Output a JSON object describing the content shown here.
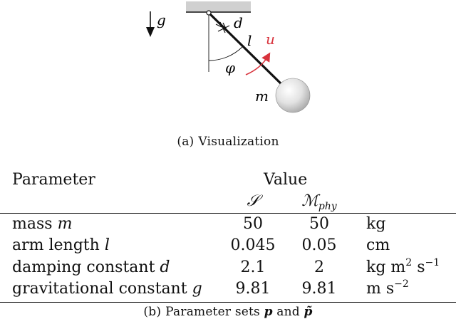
{
  "figure": {
    "labels": {
      "gravity": "g",
      "damping": "d",
      "length": "l",
      "input": "u",
      "angle": "φ",
      "mass": "m"
    },
    "colors": {
      "input_arrow": "#d8323c",
      "ceiling": "#d0d0d0",
      "rod": "#111111"
    }
  },
  "captions": {
    "a_label": "(a)",
    "a_text": "Visualization",
    "b_label": "(b)",
    "b_text_prefix": "Parameter sets",
    "b_p": "p",
    "b_and": "and",
    "b_ptilde": "p̃"
  },
  "table": {
    "header": {
      "parameter": "Parameter",
      "value": "Value",
      "set_s": "𝒮",
      "set_m": "ℳ",
      "set_m_sub": "phy"
    },
    "rows": [
      {
        "name": "mass",
        "symbol": "m",
        "s": "50",
        "m": "50",
        "unit": "kg",
        "unit_sup": ""
      },
      {
        "name": "arm length",
        "symbol": "l",
        "s": "0.045",
        "m": "0.05",
        "unit": "cm",
        "unit_sup": ""
      },
      {
        "name": "damping constant",
        "symbol": "d",
        "s": "2.1",
        "m": "2",
        "unit": "kg m2 s",
        "unit_sup": "−1"
      },
      {
        "name": "gravitational constant",
        "symbol": "g",
        "s": "9.81",
        "m": "9.81",
        "unit": "m s",
        "unit_sup": "−2"
      }
    ]
  }
}
